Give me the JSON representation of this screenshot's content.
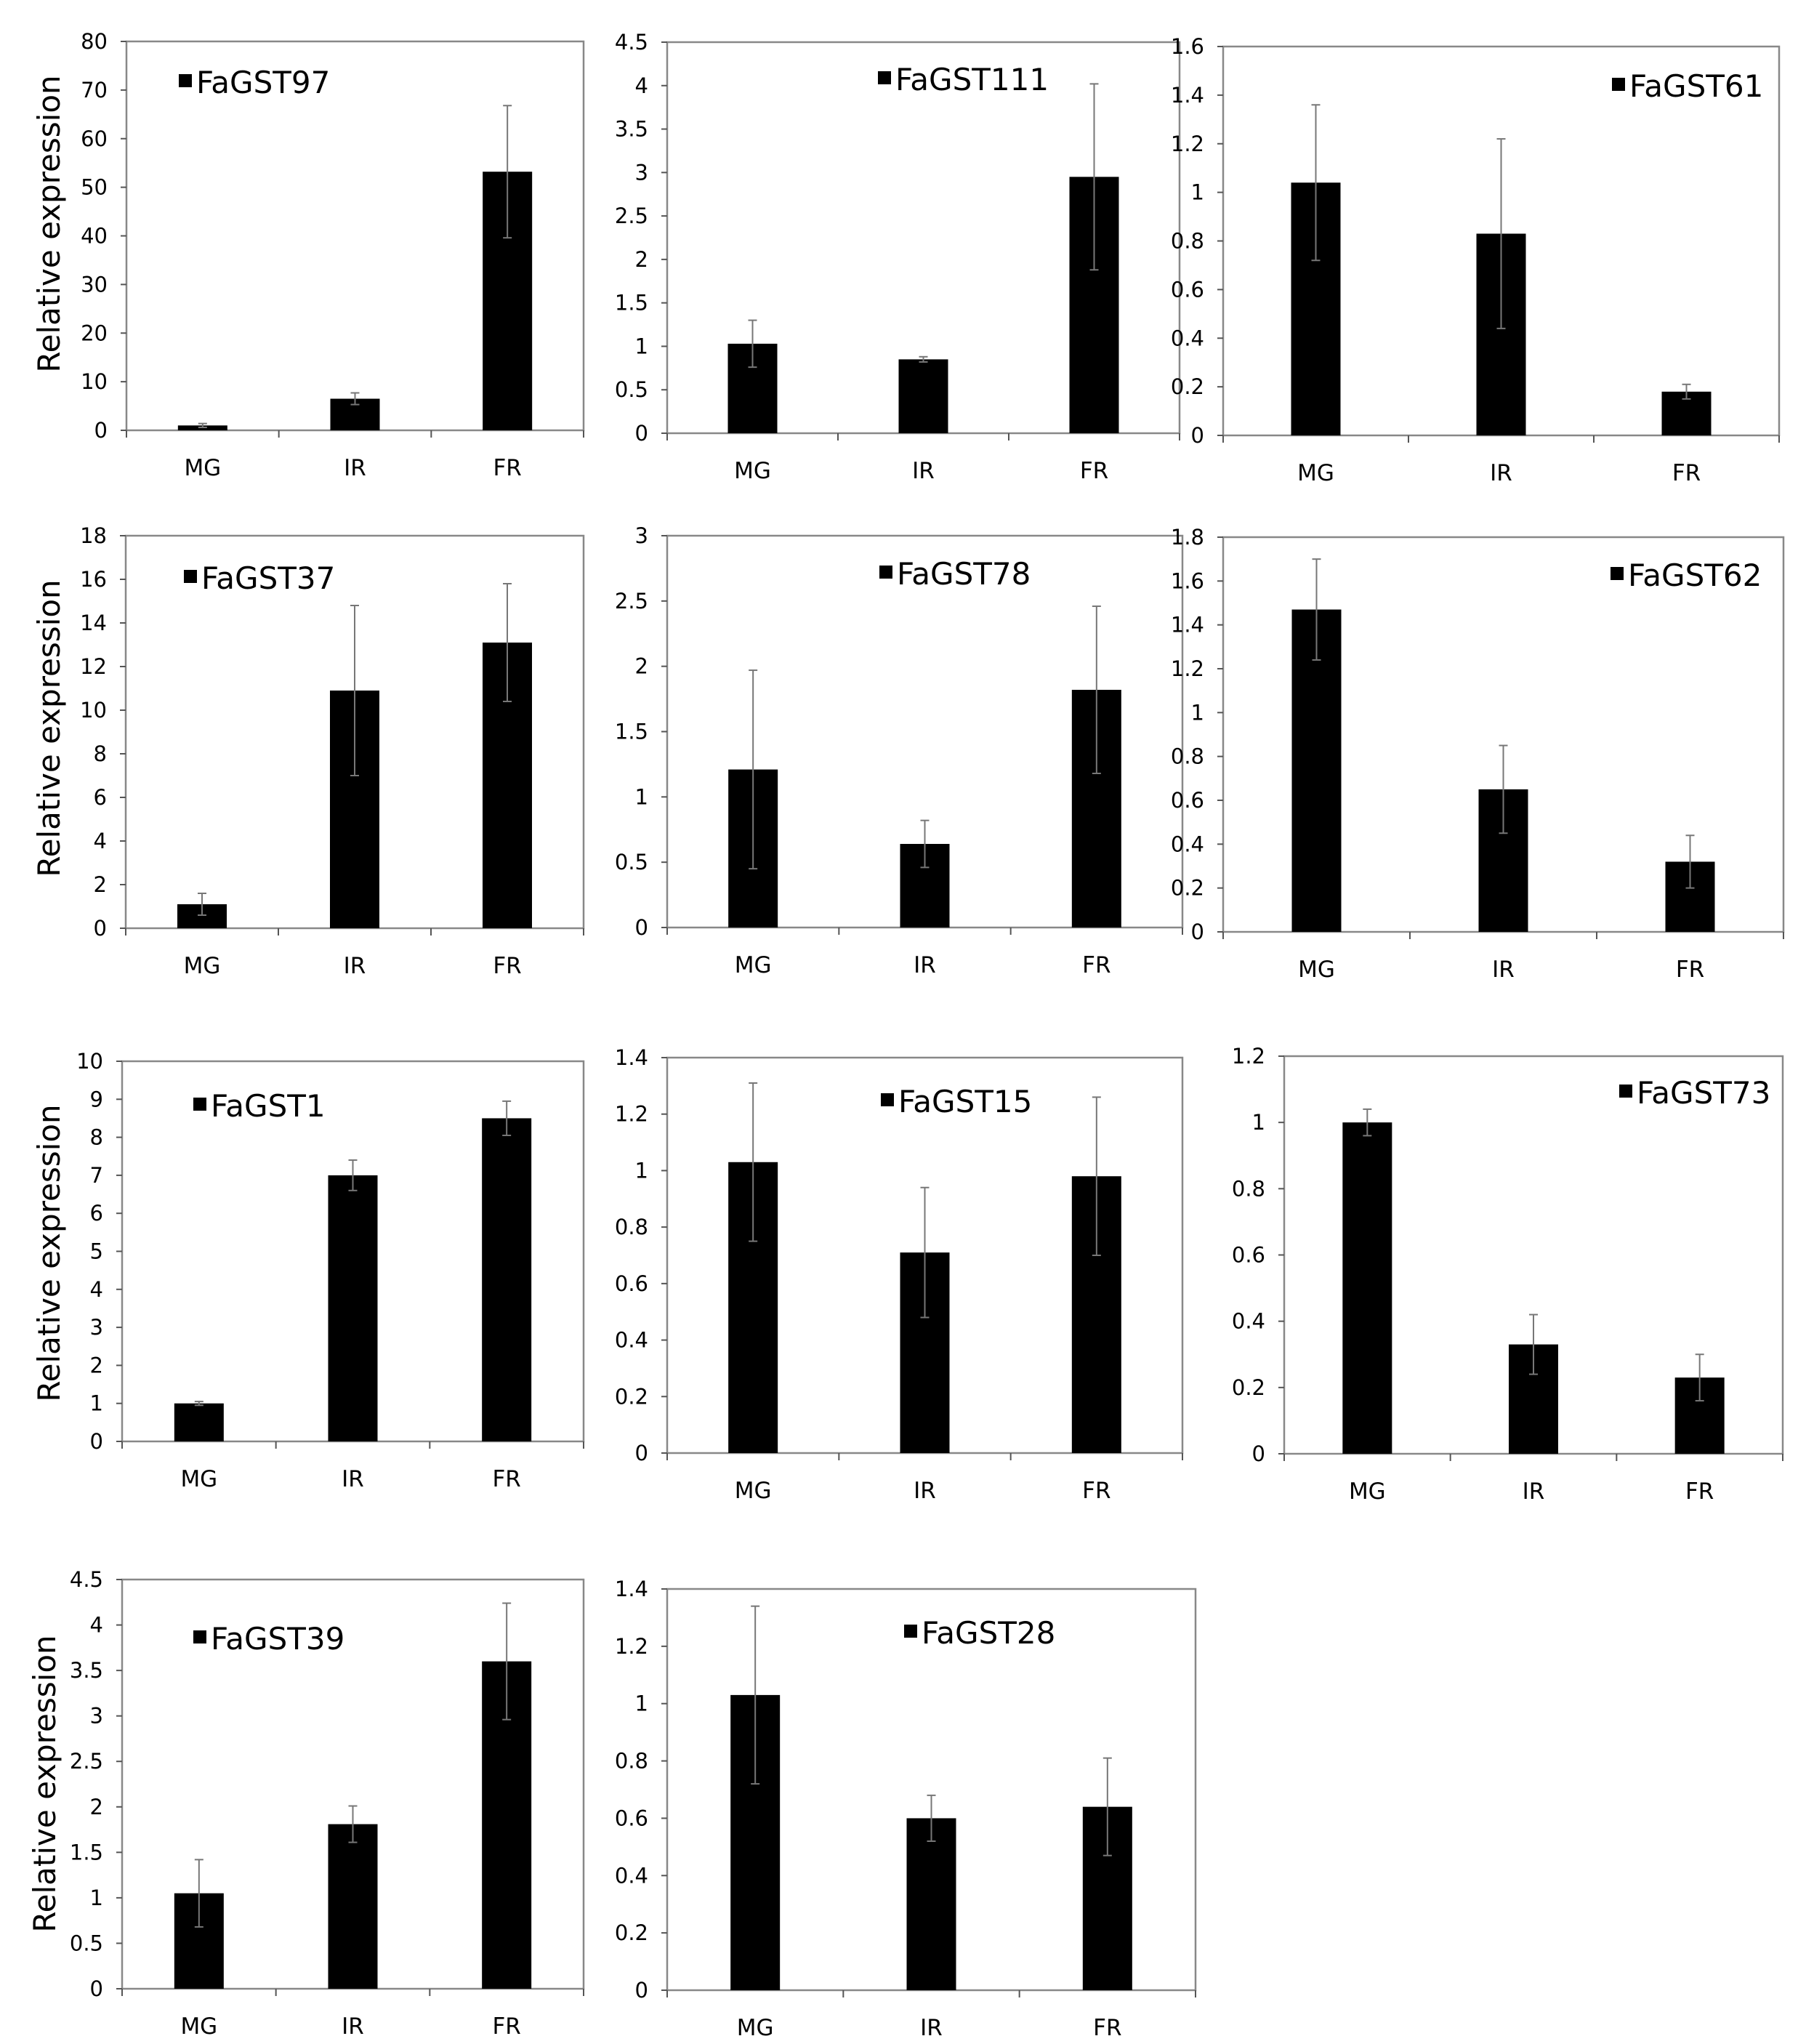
{
  "figure": {
    "ylabel": "Relative expression",
    "categories": [
      "MG",
      "IR",
      "FR"
    ]
  },
  "chart_data": [
    {
      "type": "bar",
      "title": "FaGST97",
      "legend": "FaGST97",
      "ylabel": "Relative expression",
      "categories": [
        "MG",
        "IR",
        "FR"
      ],
      "values": [
        1.0,
        6.5,
        53.2
      ],
      "errors": [
        0.4,
        1.2,
        13.6
      ],
      "ylim": [
        0,
        80
      ],
      "yticks": [
        0,
        10,
        20,
        30,
        40,
        50,
        60,
        70,
        80
      ],
      "ytick_labels": [
        "0",
        "10",
        "20",
        "30",
        "40",
        "50",
        "60",
        "70",
        "80"
      ]
    },
    {
      "type": "bar",
      "title": "FaGST111",
      "legend": "FaGST111",
      "ylabel": "",
      "categories": [
        "MG",
        "IR",
        "FR"
      ],
      "values": [
        1.03,
        0.85,
        2.95
      ],
      "errors": [
        0.27,
        0.03,
        1.07
      ],
      "ylim": [
        0,
        4.5
      ],
      "yticks": [
        0,
        0.5,
        1,
        1.5,
        2,
        2.5,
        3,
        3.5,
        4,
        4.5
      ],
      "ytick_labels": [
        "0",
        "0.5",
        "1",
        "1.5",
        "2",
        "2.5",
        "3",
        "3.5",
        "4",
        "4.5"
      ]
    },
    {
      "type": "bar",
      "title": "FaGST61",
      "legend": "FaGST61",
      "ylabel": "",
      "categories": [
        "MG",
        "IR",
        "FR"
      ],
      "values": [
        1.04,
        0.83,
        0.18
      ],
      "errors": [
        0.32,
        0.39,
        0.03
      ],
      "ylim": [
        0,
        1.6
      ],
      "yticks": [
        0,
        0.2,
        0.4,
        0.6,
        0.8,
        1,
        1.2,
        1.4,
        1.6
      ],
      "ytick_labels": [
        "0",
        "0.2",
        "0.4",
        "0.6",
        "0.8",
        "1",
        "1.2",
        "1.4",
        "1.6"
      ]
    },
    {
      "type": "bar",
      "title": "FaGST37",
      "legend": "FaGST37",
      "ylabel": "Relative expression",
      "categories": [
        "MG",
        "IR",
        "FR"
      ],
      "values": [
        1.1,
        10.9,
        13.1
      ],
      "errors": [
        0.5,
        3.9,
        2.7
      ],
      "ylim": [
        0,
        18
      ],
      "yticks": [
        0,
        2,
        4,
        6,
        8,
        10,
        12,
        14,
        16,
        18
      ],
      "ytick_labels": [
        "0",
        "2",
        "4",
        "6",
        "8",
        "10",
        "12",
        "14",
        "16",
        "18"
      ]
    },
    {
      "type": "bar",
      "title": "FaGST78",
      "legend": "FaGST78",
      "ylabel": "",
      "categories": [
        "MG",
        "IR",
        "FR"
      ],
      "values": [
        1.21,
        0.64,
        1.82
      ],
      "errors": [
        0.76,
        0.18,
        0.64
      ],
      "ylim": [
        0,
        3
      ],
      "yticks": [
        0,
        0.5,
        1,
        1.5,
        2,
        2.5,
        3
      ],
      "ytick_labels": [
        "0",
        "0.5",
        "1",
        "1.5",
        "2",
        "2.5",
        "3"
      ]
    },
    {
      "type": "bar",
      "title": "FaGST62",
      "legend": "FaGST62",
      "ylabel": "",
      "categories": [
        "MG",
        "IR",
        "FR"
      ],
      "values": [
        1.47,
        0.65,
        0.32
      ],
      "errors": [
        0.23,
        0.2,
        0.12
      ],
      "ylim": [
        0,
        1.8
      ],
      "yticks": [
        0,
        0.2,
        0.4,
        0.6,
        0.8,
        1,
        1.2,
        1.4,
        1.6,
        1.8
      ],
      "ytick_labels": [
        "0",
        "0.2",
        "0.4",
        "0.6",
        "0.8",
        "1",
        "1.2",
        "1.4",
        "1.6",
        "1.8"
      ]
    },
    {
      "type": "bar",
      "title": "FaGST1",
      "legend": "FaGST1",
      "ylabel": "Relative expression",
      "categories": [
        "MG",
        "IR",
        "FR"
      ],
      "values": [
        1.0,
        7.0,
        8.5
      ],
      "errors": [
        0.05,
        0.4,
        0.45
      ],
      "ylim": [
        0,
        10
      ],
      "yticks": [
        0,
        1,
        2,
        3,
        4,
        5,
        6,
        7,
        8,
        9,
        10
      ],
      "ytick_labels": [
        "0",
        "1",
        "2",
        "3",
        "4",
        "5",
        "6",
        "7",
        "8",
        "9",
        "10"
      ]
    },
    {
      "type": "bar",
      "title": "FaGST15",
      "legend": "FaGST15",
      "ylabel": "",
      "categories": [
        "MG",
        "IR",
        "FR"
      ],
      "values": [
        1.03,
        0.71,
        0.98
      ],
      "errors": [
        0.28,
        0.23,
        0.28
      ],
      "ylim": [
        0,
        1.4
      ],
      "yticks": [
        0,
        0.2,
        0.4,
        0.6,
        0.8,
        1,
        1.2,
        1.4
      ],
      "ytick_labels": [
        "0",
        "0.2",
        "0.4",
        "0.6",
        "0.8",
        "1",
        "1.2",
        "1.4"
      ]
    },
    {
      "type": "bar",
      "title": "FaGST73",
      "legend": "FaGST73",
      "ylabel": "",
      "categories": [
        "MG",
        "IR",
        "FR"
      ],
      "values": [
        1.0,
        0.33,
        0.23
      ],
      "errors": [
        0.04,
        0.09,
        0.07
      ],
      "ylim": [
        0,
        1.2
      ],
      "yticks": [
        0,
        0.2,
        0.4,
        0.6,
        0.8,
        1,
        1.2
      ],
      "ytick_labels": [
        "0",
        "0.2",
        "0.4",
        "0.6",
        "0.8",
        "1",
        "1.2"
      ]
    },
    {
      "type": "bar",
      "title": "FaGST39",
      "legend": "FaGST39",
      "ylabel": "Relative expression",
      "categories": [
        "MG",
        "IR",
        "FR"
      ],
      "values": [
        1.05,
        1.81,
        3.6
      ],
      "errors": [
        0.37,
        0.2,
        0.64
      ],
      "ylim": [
        0,
        4.5
      ],
      "yticks": [
        0,
        0.5,
        1,
        1.5,
        2,
        2.5,
        3,
        3.5,
        4,
        4.5
      ],
      "ytick_labels": [
        "0",
        "0.5",
        "1",
        "1.5",
        "2",
        "2.5",
        "3",
        "3.5",
        "4",
        "4.5"
      ]
    },
    {
      "type": "bar",
      "title": "FaGST28",
      "legend": "FaGST28",
      "ylabel": "",
      "categories": [
        "MG",
        "IR",
        "FR"
      ],
      "values": [
        1.03,
        0.6,
        0.64
      ],
      "errors": [
        0.31,
        0.08,
        0.17
      ],
      "ylim": [
        0,
        1.4
      ],
      "yticks": [
        0,
        0.2,
        0.4,
        0.6,
        0.8,
        1,
        1.2,
        1.4
      ],
      "ytick_labels": [
        "0",
        "0.2",
        "0.4",
        "0.6",
        "0.8",
        "1",
        "1.2",
        "1.4"
      ]
    }
  ]
}
